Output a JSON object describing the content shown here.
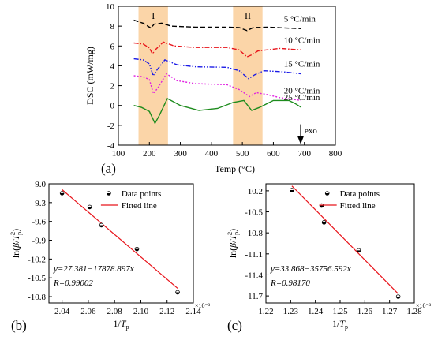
{
  "chart_data": [
    {
      "panel": "(a)",
      "type": "line",
      "xlabel": "Temp (°C)",
      "ylabel": "DSC (mW/mg)",
      "xlim": [
        100,
        800
      ],
      "ylim": [
        -4,
        10
      ],
      "xticks": [
        "100",
        "200",
        "300",
        "400",
        "500",
        "600",
        "700",
        "800"
      ],
      "yticks": [
        "-4",
        "-2",
        "0",
        "2",
        "4",
        "6",
        "8",
        "10"
      ],
      "bands": [
        {
          "label": "I",
          "range": [
            165,
            260
          ]
        },
        {
          "label": "II",
          "range": [
            470,
            565
          ]
        }
      ],
      "exo_label": "exo",
      "series": [
        {
          "name": "5 °C/min",
          "color": "#000000",
          "dash": "6,3",
          "points": [
            [
              150,
              8.6
            ],
            [
              180,
              8.3
            ],
            [
              195,
              8.0
            ],
            [
              205,
              7.8
            ],
            [
              215,
              8.2
            ],
            [
              240,
              8.3
            ],
            [
              270,
              8.0
            ],
            [
              350,
              7.9
            ],
            [
              450,
              7.9
            ],
            [
              490,
              7.85
            ],
            [
              515,
              7.55
            ],
            [
              535,
              7.85
            ],
            [
              580,
              7.9
            ],
            [
              650,
              7.8
            ],
            [
              690,
              7.75
            ]
          ]
        },
        {
          "name": "10 °C/min",
          "color": "#e8141b",
          "dash": "6,2,1.5,2",
          "points": [
            [
              150,
              6.3
            ],
            [
              180,
              6.2
            ],
            [
              200,
              5.8
            ],
            [
              210,
              5.2
            ],
            [
              222,
              5.7
            ],
            [
              245,
              6.4
            ],
            [
              280,
              6.0
            ],
            [
              350,
              5.85
            ],
            [
              450,
              5.85
            ],
            [
              490,
              5.6
            ],
            [
              515,
              4.9
            ],
            [
              530,
              5.1
            ],
            [
              550,
              5.5
            ],
            [
              620,
              5.75
            ],
            [
              690,
              5.6
            ]
          ]
        },
        {
          "name": "15 °C/min",
          "color": "#1a1ae6",
          "dash": "6,2,1.5,2,1.5,2",
          "points": [
            [
              150,
              4.7
            ],
            [
              180,
              4.6
            ],
            [
              200,
              4.2
            ],
            [
              212,
              3.0
            ],
            [
              225,
              3.6
            ],
            [
              250,
              4.6
            ],
            [
              290,
              4.1
            ],
            [
              350,
              3.9
            ],
            [
              450,
              3.85
            ],
            [
              490,
              3.5
            ],
            [
              520,
              2.7
            ],
            [
              540,
              3.1
            ],
            [
              570,
              3.5
            ],
            [
              630,
              3.4
            ],
            [
              690,
              3.2
            ]
          ]
        },
        {
          "name": "20 °C/min",
          "color": "#e020e0",
          "dash": "2,2",
          "points": [
            [
              150,
              3.0
            ],
            [
              180,
              2.9
            ],
            [
              200,
              2.6
            ],
            [
              213,
              1.2
            ],
            [
              228,
              1.8
            ],
            [
              255,
              3.2
            ],
            [
              290,
              2.5
            ],
            [
              350,
              2.2
            ],
            [
              450,
              2.1
            ],
            [
              490,
              1.6
            ],
            [
              523,
              0.9
            ],
            [
              545,
              1.3
            ],
            [
              580,
              1.1
            ],
            [
              620,
              0.8
            ],
            [
              690,
              0.5
            ]
          ]
        },
        {
          "name": "25 °C/min",
          "color": "#1e8c1e",
          "dash": "",
          "points": [
            [
              150,
              0.0
            ],
            [
              175,
              -0.2
            ],
            [
              200,
              -0.6
            ],
            [
              218,
              -1.8
            ],
            [
              232,
              -1.0
            ],
            [
              258,
              0.7
            ],
            [
              300,
              0.0
            ],
            [
              360,
              -0.5
            ],
            [
              420,
              -0.3
            ],
            [
              470,
              0.3
            ],
            [
              505,
              0.5
            ],
            [
              530,
              -0.5
            ],
            [
              555,
              -0.2
            ],
            [
              600,
              0.5
            ],
            [
              650,
              0.5
            ],
            [
              670,
              0.2
            ],
            [
              690,
              -0.2
            ]
          ]
        }
      ]
    },
    {
      "panel": "(b)",
      "type": "scatter",
      "xlabel": "1/Tp",
      "ylabel": "ln(β/Tp²)",
      "xlim": [
        2.03,
        2.14
      ],
      "ylim": [
        -10.9,
        -9.0
      ],
      "xticks": [
        "2.04",
        "2.06",
        "2.08",
        "2.10",
        "2.12",
        "2.14"
      ],
      "yticks": [
        "-9.0",
        "-9.3",
        "-9.6",
        "-9.9",
        "-10.2",
        "-10.5",
        "-10.8"
      ],
      "x_multiplier": "×10⁻³",
      "legend": [
        "Data points",
        "Fitted line"
      ],
      "points": [
        [
          2.04,
          -9.15
        ],
        [
          2.061,
          -9.37
        ],
        [
          2.07,
          -9.66
        ],
        [
          2.097,
          -10.04
        ],
        [
          2.128,
          -10.73
        ]
      ],
      "fit_line": [
        [
          2.04,
          -9.093
        ],
        [
          2.128,
          -10.666
        ]
      ],
      "equation": "y=27.381−17878.897x",
      "r_value": "R=0.99002"
    },
    {
      "panel": "(c)",
      "type": "scatter",
      "xlabel": "1/Tp",
      "ylabel": "ln(β/Tp²)",
      "xlim": [
        1.22,
        1.28
      ],
      "ylim": [
        -11.8,
        -10.1
      ],
      "xticks": [
        "1.22",
        "1.23",
        "1.24",
        "1.25",
        "1.26",
        "1.27",
        "1.28"
      ],
      "yticks": [
        "-10.2",
        "-10.5",
        "-10.8",
        "-11.1",
        "-11.4",
        "-11.7"
      ],
      "x_multiplier": "×10⁻³",
      "legend": [
        "Data points",
        "Fitted line"
      ],
      "points": [
        [
          1.2305,
          -10.19
        ],
        [
          1.2425,
          -10.41
        ],
        [
          1.2435,
          -10.65
        ],
        [
          1.2575,
          -11.05
        ],
        [
          1.2735,
          -11.71
        ]
      ],
      "fit_line": [
        [
          1.2305,
          -10.13
        ],
        [
          1.2735,
          -11.67
        ]
      ],
      "equation": "y=33.868−35756.592x",
      "r_value": "R=0.98170"
    }
  ]
}
